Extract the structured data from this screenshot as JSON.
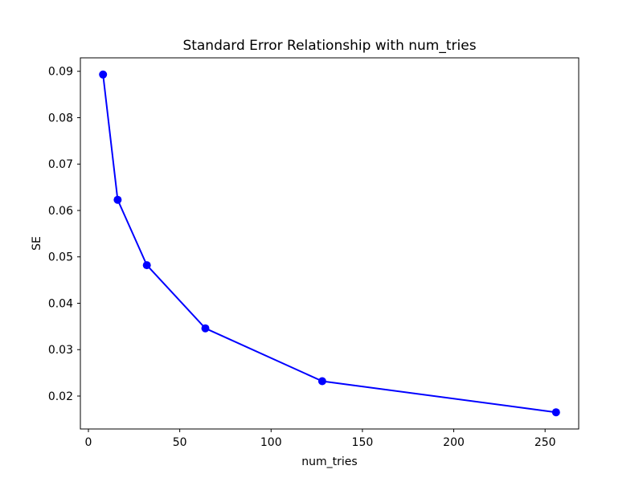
{
  "figure": {
    "background": "#ffffff",
    "title": "Standard Error Relationship with num_tries"
  },
  "chart_data": {
    "type": "line",
    "title": "Standard Error Relationship with num_tries",
    "xlabel": "num_tries",
    "ylabel": "SE",
    "x": [
      8,
      16,
      32,
      64,
      128,
      256
    ],
    "y": [
      0.0893,
      0.0623,
      0.0482,
      0.0346,
      0.0232,
      0.0165
    ],
    "line_color": "#0000ff",
    "marker": "circle",
    "marker_radius": 5,
    "line_width": 2,
    "xlim": [
      -4.4,
      268.4
    ],
    "ylim": [
      0.0129,
      0.0929
    ],
    "xticks": [
      0,
      50,
      100,
      150,
      200,
      250
    ],
    "xtick_labels": [
      "0",
      "50",
      "100",
      "150",
      "200",
      "250"
    ],
    "yticks": [
      0.02,
      0.03,
      0.04,
      0.05,
      0.06,
      0.07,
      0.08,
      0.09
    ],
    "ytick_labels": [
      "0.02",
      "0.03",
      "0.04",
      "0.05",
      "0.06",
      "0.07",
      "0.08",
      "0.09"
    ],
    "grid": false,
    "legend": null,
    "axes_color": "#000000"
  }
}
